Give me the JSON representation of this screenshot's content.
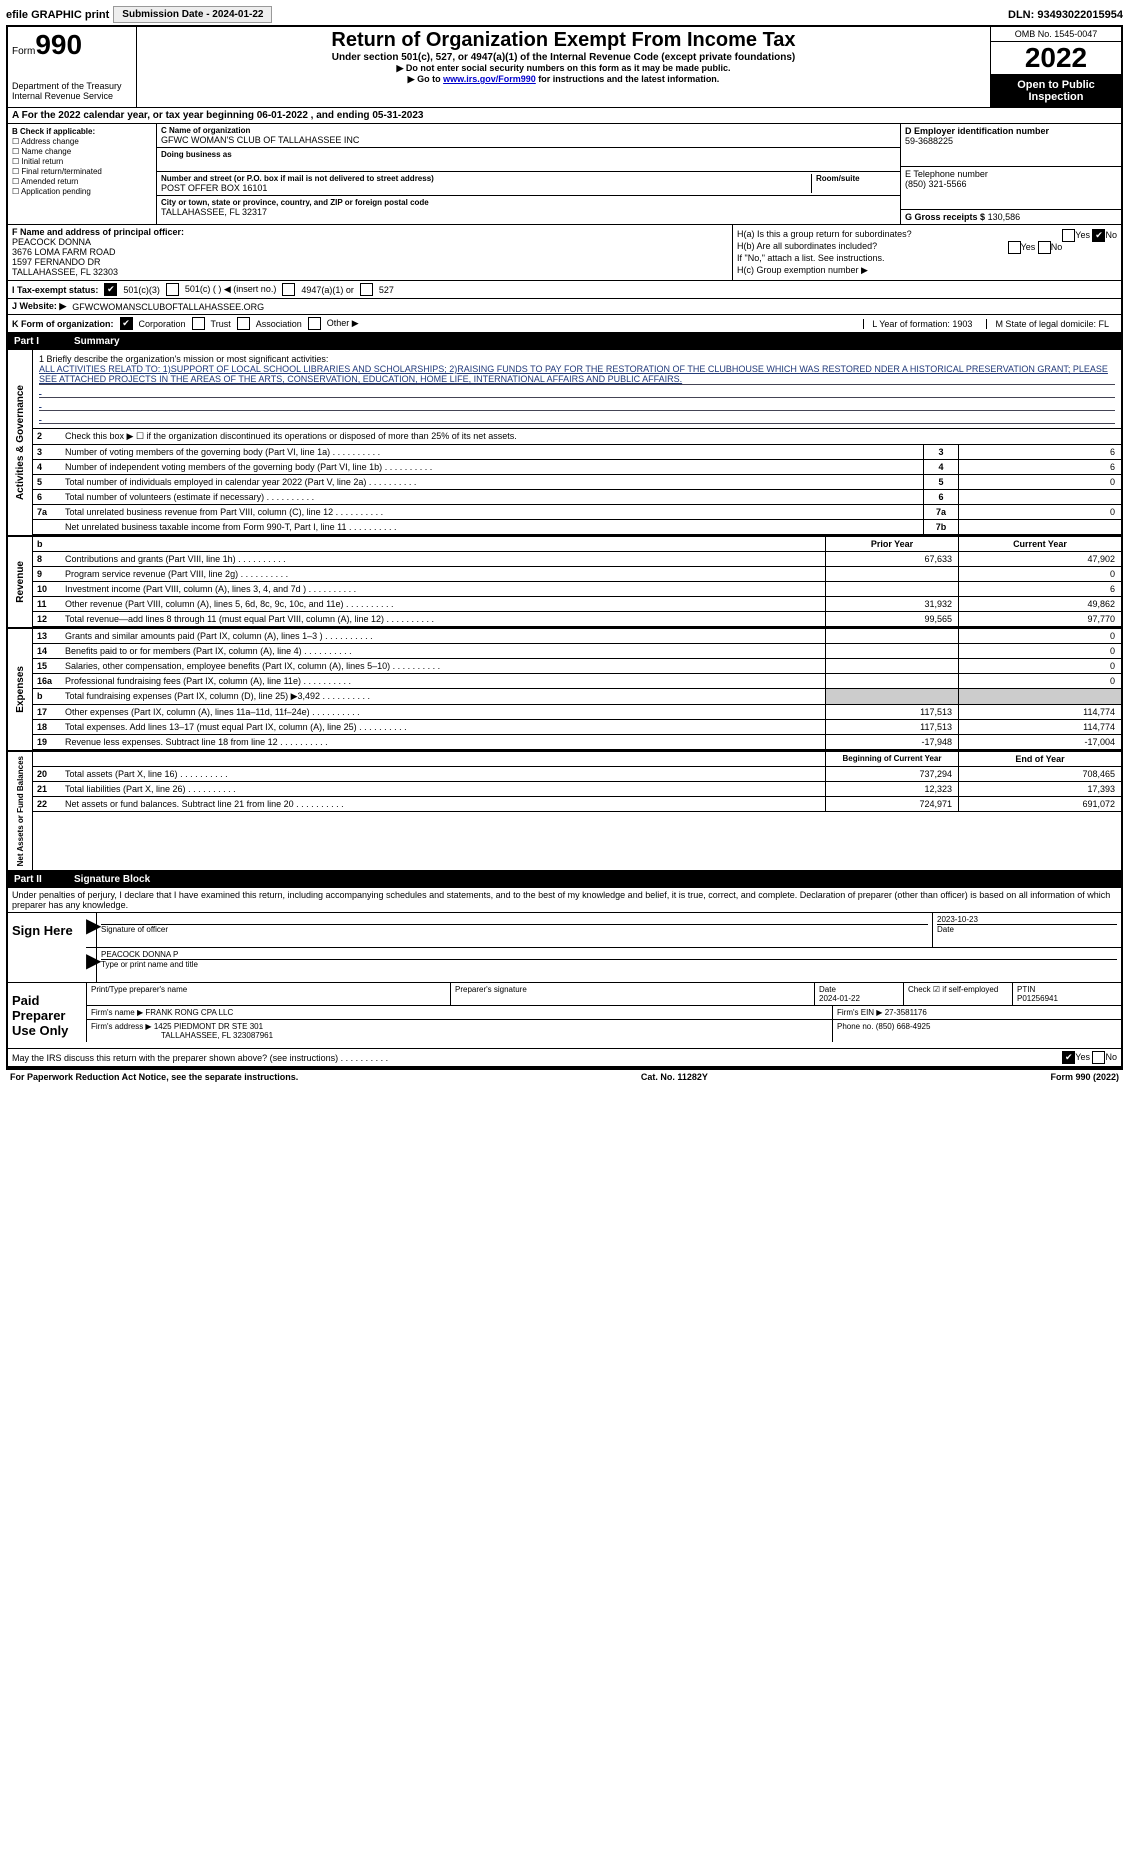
{
  "topbar": {
    "efile": "efile GRAPHIC print",
    "submit_btn": "Submission Date - 2024-01-22",
    "dln": "DLN: 93493022015954"
  },
  "header": {
    "form_label": "Form",
    "form_num": "990",
    "title": "Return of Organization Exempt From Income Tax",
    "subtitle": "Under section 501(c), 527, or 4947(a)(1) of the Internal Revenue Code (except private foundations)",
    "note1": "▶ Do not enter social security numbers on this form as it may be made public.",
    "note2_pre": "▶ Go to ",
    "note2_link": "www.irs.gov/Form990",
    "note2_post": " for instructions and the latest information.",
    "dept": "Department of the Treasury",
    "irs": "Internal Revenue Service",
    "omb": "OMB No. 1545-0047",
    "year": "2022",
    "open": "Open to Public Inspection"
  },
  "sectionA": {
    "text": "A  For the 2022 calendar year, or tax year beginning 06-01-2022     , and ending 05-31-2023"
  },
  "sectionB": {
    "hdr": "B Check if applicable:",
    "items": [
      "☐ Address change",
      "☐ Name change",
      "☐ Initial return",
      "☐ Final return/terminated",
      "☐ Amended return",
      "☐ Application pending"
    ]
  },
  "sectionC": {
    "name_lbl": "C Name of organization",
    "name": "GFWC WOMAN'S CLUB OF TALLAHASSEE INC",
    "dba_lbl": "Doing business as",
    "dba": "",
    "addr_lbl": "Number and street (or P.O. box if mail is not delivered to street address)",
    "addr": "POST OFFER BOX 16101",
    "room_lbl": "Room/suite",
    "city_lbl": "City or town, state or province, country, and ZIP or foreign postal code",
    "city": "TALLAHASSEE, FL  32317"
  },
  "sectionD": {
    "ein_lbl": "D Employer identification number",
    "ein": "59-3688225",
    "tel_lbl": "E Telephone number",
    "tel": "(850) 321-5566",
    "gross_lbl": "G Gross receipts $",
    "gross": "130,586"
  },
  "sectionF": {
    "lbl": "F Name and address of principal officer:",
    "l1": "PEACOCK DONNA",
    "l2": "3676 LOMA FARM ROAD",
    "l3": "1597 FERNANDO DR",
    "l4": "TALLAHASSEE, FL 32303"
  },
  "sectionH": {
    "ha": "H(a)  Is this a group return for subordinates?",
    "hb": "H(b)  Are all subordinates included?",
    "hb2": "If \"No,\" attach a list. See instructions.",
    "hc": "H(c)  Group exemption number ▶",
    "yes": "Yes",
    "no": "No"
  },
  "rowI": {
    "lbl": "I   Tax-exempt status:",
    "opts": [
      "501(c)(3)",
      "501(c) (   ) ◀ (insert no.)",
      "4947(a)(1) or",
      "527"
    ]
  },
  "rowJ": {
    "lbl": "J   Website: ▶",
    "val": "GFWCWOMANSCLUBOFTALLAHASSEE.ORG"
  },
  "rowK": {
    "lbl": "K Form of organization:",
    "opts": [
      "Corporation",
      "Trust",
      "Association",
      "Other ▶"
    ],
    "L": "L Year of formation: 1903",
    "M": "M State of legal domicile: FL"
  },
  "part1": {
    "num": "Part I",
    "title": "Summary"
  },
  "mission": {
    "lbl": "1   Briefly describe the organization's mission or most significant activities:",
    "text": "ALL ACTIVITIES RELATD TO: 1)SUPPORT OF LOCAL SCHOOL LIBRARIES AND SCHOLARSHIPS; 2)RAISING FUNDS TO PAY FOR THE RESTORATION OF THE CLUBHOUSE WHICH WAS RESTORED NDER A HISTORICAL PRESERVATION GRANT; PLEASE SEE ATTACHED PROJECTS IN THE AREAS OF THE ARTS, CONSERVATION, EDUCATION, HOME LIFE, INTERNATIONAL AFFAIRS AND PUBLIC AFFAIRS."
  },
  "gov": {
    "label": "Activities & Governance",
    "l2": "Check this box ▶ ☐  if the organization discontinued its operations or disposed of more than 25% of its net assets.",
    "rows": [
      {
        "n": "3",
        "t": "Number of voting members of the governing body (Part VI, line 1a)",
        "b": "3",
        "v": "6"
      },
      {
        "n": "4",
        "t": "Number of independent voting members of the governing body (Part VI, line 1b)",
        "b": "4",
        "v": "6"
      },
      {
        "n": "5",
        "t": "Total number of individuals employed in calendar year 2022 (Part V, line 2a)",
        "b": "5",
        "v": "0"
      },
      {
        "n": "6",
        "t": "Total number of volunteers (estimate if necessary)",
        "b": "6",
        "v": ""
      },
      {
        "n": "7a",
        "t": "Total unrelated business revenue from Part VIII, column (C), line 12",
        "b": "7a",
        "v": "0"
      },
      {
        "n": "",
        "t": "Net unrelated business taxable income from Form 990-T, Part I, line 11",
        "b": "7b",
        "v": ""
      }
    ]
  },
  "rev": {
    "label": "Revenue",
    "hdr_b": "b",
    "h1": "Prior Year",
    "h2": "Current Year",
    "rows": [
      {
        "n": "8",
        "t": "Contributions and grants (Part VIII, line 1h)",
        "p": "67,633",
        "c": "47,902"
      },
      {
        "n": "9",
        "t": "Program service revenue (Part VIII, line 2g)",
        "p": "",
        "c": "0"
      },
      {
        "n": "10",
        "t": "Investment income (Part VIII, column (A), lines 3, 4, and 7d )",
        "p": "",
        "c": "6"
      },
      {
        "n": "11",
        "t": "Other revenue (Part VIII, column (A), lines 5, 6d, 8c, 9c, 10c, and 11e)",
        "p": "31,932",
        "c": "49,862"
      },
      {
        "n": "12",
        "t": "Total revenue—add lines 8 through 11 (must equal Part VIII, column (A), line 12)",
        "p": "99,565",
        "c": "97,770"
      }
    ]
  },
  "exp": {
    "label": "Expenses",
    "rows": [
      {
        "n": "13",
        "t": "Grants and similar amounts paid (Part IX, column (A), lines 1–3 )",
        "p": "",
        "c": "0"
      },
      {
        "n": "14",
        "t": "Benefits paid to or for members (Part IX, column (A), line 4)",
        "p": "",
        "c": "0"
      },
      {
        "n": "15",
        "t": "Salaries, other compensation, employee benefits (Part IX, column (A), lines 5–10)",
        "p": "",
        "c": "0"
      },
      {
        "n": "16a",
        "t": "Professional fundraising fees (Part IX, column (A), line 11e)",
        "p": "",
        "c": "0"
      },
      {
        "n": "b",
        "t": "Total fundraising expenses (Part IX, column (D), line 25) ▶3,492",
        "p": "gray",
        "c": "gray"
      },
      {
        "n": "17",
        "t": "Other expenses (Part IX, column (A), lines 11a–11d, 11f–24e)",
        "p": "117,513",
        "c": "114,774"
      },
      {
        "n": "18",
        "t": "Total expenses. Add lines 13–17 (must equal Part IX, column (A), line 25)",
        "p": "117,513",
        "c": "114,774"
      },
      {
        "n": "19",
        "t": "Revenue less expenses. Subtract line 18 from line 12",
        "p": "-17,948",
        "c": "-17,004"
      }
    ]
  },
  "net": {
    "label": "Net Assets or Fund Balances",
    "h1": "Beginning of Current Year",
    "h2": "End of Year",
    "rows": [
      {
        "n": "20",
        "t": "Total assets (Part X, line 16)",
        "p": "737,294",
        "c": "708,465"
      },
      {
        "n": "21",
        "t": "Total liabilities (Part X, line 26)",
        "p": "12,323",
        "c": "17,393"
      },
      {
        "n": "22",
        "t": "Net assets or fund balances. Subtract line 21 from line 20",
        "p": "724,971",
        "c": "691,072"
      }
    ]
  },
  "part2": {
    "num": "Part II",
    "title": "Signature Block"
  },
  "sig": {
    "decl": "Under penalties of perjury, I declare that I have examined this return, including accompanying schedules and statements, and to the best of my knowledge and belief, it is true, correct, and complete. Declaration of preparer (other than officer) is based on all information of which preparer has any knowledge.",
    "sign_here": "Sign Here",
    "sig_officer": "Signature of officer",
    "date": "Date",
    "date_val": "2023-10-23",
    "name": "PEACOCK DONNA  P",
    "name_lbl": "Type or print name and title",
    "paid": "Paid Preparer Use Only",
    "p_name_lbl": "Print/Type preparer's name",
    "p_sig_lbl": "Preparer's signature",
    "p_date_lbl": "Date",
    "p_date": "2024-01-22",
    "p_check": "Check ☑ if self-employed",
    "ptin_lbl": "PTIN",
    "ptin": "P01256941",
    "firm_lbl": "Firm's name     ▶",
    "firm": "FRANK RONG CPA LLC",
    "ein_lbl": "Firm's EIN ▶",
    "ein": "27-3581176",
    "addr_lbl": "Firm's address ▶",
    "addr": "1425 PIEDMONT DR STE 301",
    "addr2": "TALLAHASSEE, FL  323087961",
    "phone_lbl": "Phone no.",
    "phone": "(850) 668-4925",
    "may": "May the IRS discuss this return with the preparer shown above? (see instructions)",
    "yes": "Yes",
    "no": "No"
  },
  "footer": {
    "l": "For Paperwork Reduction Act Notice, see the separate instructions.",
    "c": "Cat. No. 11282Y",
    "r": "Form 990 (2022)"
  }
}
